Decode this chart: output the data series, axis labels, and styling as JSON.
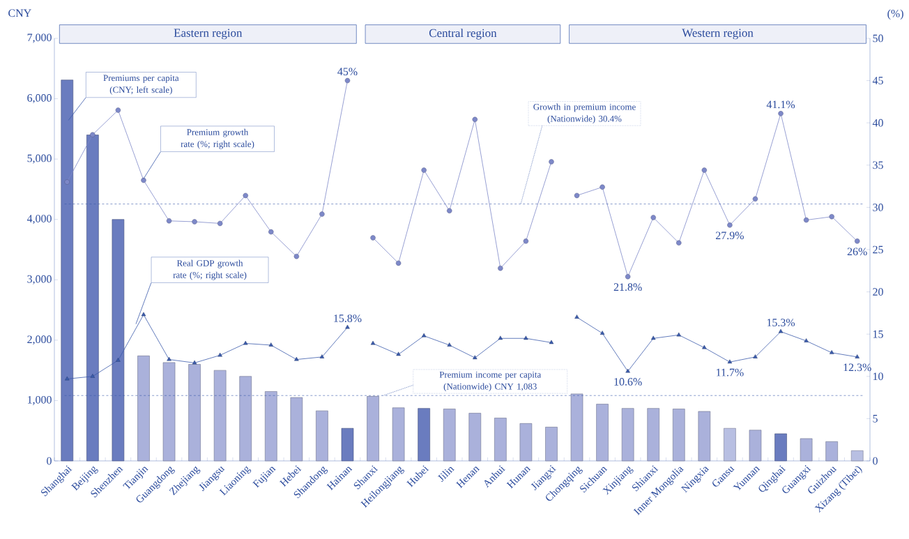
{
  "chart_data": {
    "type": "bar",
    "categories": [
      "Shanghai",
      "Beijing",
      "Shenzhen",
      "Tianjin",
      "Guangdong",
      "Zhejiang",
      "Jiangsu",
      "Liaoning",
      "Fujian",
      "Hebei",
      "Shandong",
      "Hainan",
      "Shanxi",
      "Heilongjiang",
      "Hubei",
      "Jilin",
      "Henan",
      "Anhui",
      "Hunan",
      "Jiangxi",
      "Chongqing",
      "Sichuan",
      "Xinjiang",
      "Shianxi",
      "Inner Mongolia",
      "Ningxia",
      "Gansu",
      "Yunnan",
      "Qinghai",
      "Guangxi",
      "Guizhou",
      "Xizang (Tibet)"
    ],
    "series": [
      {
        "values": [
          6310,
          5400,
          4000,
          1740,
          1630,
          1600,
          1500,
          1400,
          1150,
          1050,
          830,
          540,
          1070,
          880,
          870,
          860,
          790,
          710,
          620,
          560,
          1110,
          940,
          870,
          870,
          860,
          820,
          540,
          510,
          450,
          370,
          320,
          170
        ],
        "colors": [
          "#6a7cbf",
          "#6a7cbf",
          "#6a7cbf",
          "#aab1db",
          "#aab1db",
          "#aab1db",
          "#aab1db",
          "#aab1db",
          "#aab1db",
          "#aab1db",
          "#aab1db",
          "#6a7cbf",
          "#aab1db",
          "#aab1db",
          "#6a7cbf",
          "#aab1db",
          "#aab1db",
          "#aab1db",
          "#aab1db",
          "#aab1db",
          "#aab1db",
          "#aab1db",
          "#aab1db",
          "#aab1db",
          "#aab1db",
          "#aab1db",
          "#b8bfe2",
          "#aab1db",
          "#6a7cbf",
          "#aab1db",
          "#aab1db",
          "#b8bfe2"
        ]
      },
      {
        "type": "line",
        "axis": "y2",
        "color": "#7d88c8",
        "marker": "circle",
        "values": [
          33.0,
          38.6,
          41.5,
          33.2,
          28.4,
          28.3,
          28.1,
          31.4,
          27.1,
          24.2,
          29.2,
          45,
          null,
          null,
          null,
          null,
          null,
          null,
          null,
          null,
          null,
          null,
          null,
          null,
          null,
          null,
          null,
          null,
          null,
          null,
          null,
          null
        ],
        "value_labels": [
          null,
          null,
          null,
          null,
          null,
          null,
          null,
          null,
          null,
          null,
          null,
          "45%",
          null,
          null,
          null,
          null,
          null,
          null,
          null,
          null,
          null,
          null,
          null,
          null,
          null,
          null,
          null,
          null,
          null,
          null,
          null,
          null
        ]
      },
      {
        "type": "line",
        "axis": "y2",
        "color": "#7d88c8",
        "marker": "circle",
        "values": [
          null,
          null,
          null,
          null,
          null,
          null,
          null,
          null,
          null,
          null,
          null,
          null,
          26.4,
          23.4,
          34.4,
          29.6,
          40.4,
          22.8,
          26.0,
          35.4,
          null,
          null,
          null,
          null,
          null,
          null,
          null,
          null,
          null,
          null,
          null,
          null
        ]
      },
      {
        "type": "line",
        "axis": "y2",
        "color": "#7d88c8",
        "marker": "circle",
        "values": [
          null,
          null,
          null,
          null,
          null,
          null,
          null,
          null,
          null,
          null,
          null,
          null,
          null,
          null,
          null,
          null,
          null,
          null,
          null,
          null,
          31.4,
          32.4,
          21.8,
          28.8,
          25.8,
          34.4,
          27.9,
          31.0,
          41.1,
          28.5,
          28.9,
          26
        ],
        "value_labels": [
          null,
          null,
          null,
          null,
          null,
          null,
          null,
          null,
          null,
          null,
          null,
          null,
          null,
          null,
          null,
          null,
          null,
          null,
          null,
          null,
          null,
          null,
          "21.8%",
          null,
          null,
          null,
          "27.9%",
          null,
          "41.1%",
          null,
          null,
          "26%"
        ]
      },
      {
        "type": "line",
        "axis": "y2",
        "color": "#3b5bab",
        "marker": "triangle",
        "values": [
          9.7,
          10.0,
          11.9,
          17.3,
          12.0,
          11.6,
          12.5,
          13.9,
          13.7,
          12.0,
          12.3,
          15.8,
          null,
          null,
          null,
          null,
          null,
          null,
          null,
          null,
          null,
          null,
          null,
          null,
          null,
          null,
          null,
          null,
          null,
          null,
          null,
          null
        ],
        "value_labels": [
          null,
          null,
          null,
          null,
          null,
          null,
          null,
          null,
          null,
          null,
          null,
          "15.8%",
          null,
          null,
          null,
          null,
          null,
          null,
          null,
          null,
          null,
          null,
          null,
          null,
          null,
          null,
          null,
          null,
          null,
          null,
          null,
          null
        ]
      },
      {
        "type": "line",
        "axis": "y2",
        "color": "#3b5bab",
        "marker": "triangle",
        "values": [
          null,
          null,
          null,
          null,
          null,
          null,
          null,
          null,
          null,
          null,
          null,
          null,
          13.9,
          12.6,
          14.8,
          13.7,
          12.2,
          14.5,
          14.5,
          14.0,
          null,
          null,
          null,
          null,
          null,
          null,
          null,
          null,
          null,
          null,
          null,
          null
        ]
      },
      {
        "type": "line",
        "axis": "y2",
        "color": "#3b5bab",
        "marker": "triangle",
        "values": [
          null,
          null,
          null,
          null,
          null,
          null,
          null,
          null,
          null,
          null,
          null,
          null,
          null,
          null,
          null,
          null,
          null,
          null,
          null,
          null,
          17.0,
          15.1,
          10.6,
          14.5,
          14.9,
          13.4,
          11.7,
          12.3,
          15.3,
          14.2,
          12.8,
          12.3
        ],
        "value_labels": [
          null,
          null,
          null,
          null,
          null,
          null,
          null,
          null,
          null,
          null,
          null,
          null,
          null,
          null,
          null,
          null,
          null,
          null,
          null,
          null,
          null,
          null,
          "10.6%",
          null,
          null,
          null,
          "11.7%",
          null,
          "15.3%",
          null,
          null,
          "12.3%"
        ]
      }
    ],
    "ylabel": "CNY",
    "y2label": "(%)",
    "ylim": [
      0,
      7000
    ],
    "yticks": [
      0,
      {
        "value": 1000,
        "label": "1,000"
      },
      {
        "value": 2000,
        "label": "2,000"
      },
      {
        "value": 3000,
        "label": "3,000"
      },
      {
        "value": 4000,
        "label": "4,000"
      },
      {
        "value": 5000,
        "label": "5,000"
      },
      {
        "value": 6000,
        "label": "6,000"
      },
      {
        "value": 7000,
        "label": "7,000"
      }
    ],
    "y2lim": [
      0,
      50
    ],
    "y2ticks": [
      0,
      5,
      10,
      15,
      20,
      25,
      30,
      35,
      40,
      45,
      50
    ],
    "ref_lines": [
      {
        "axis": "y",
        "value": 1083,
        "label": "Premium income per capita (Nationwide) CNY 1,083",
        "color": "#3b5bab",
        "line_style": "dashed"
      },
      {
        "axis": "y2",
        "value": 30.4,
        "label": "Growth in premium income (Nationwide) 30.4%",
        "color": "#3b5bab",
        "line_style": "dashed"
      }
    ],
    "annotations": [
      "Eastern region",
      "Central region",
      "Western region",
      "Premiums per capita (CNY; left scale)",
      "Premium growth rate (%; right scale)",
      "Real GDP growth rate (%; right scale)"
    ]
  }
}
